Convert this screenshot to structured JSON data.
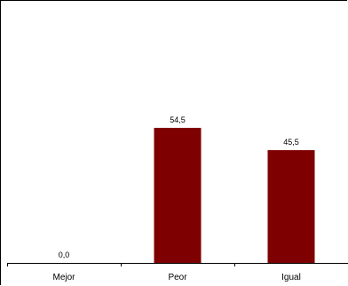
{
  "chart_data": {
    "type": "bar",
    "categories": [
      "Mejor",
      "Peor",
      "Igual"
    ],
    "values": [
      0.0,
      54.5,
      45.5
    ],
    "value_labels": [
      "0,0",
      "54,5",
      "45,5"
    ],
    "title": "",
    "xlabel": "",
    "ylabel": "",
    "ylim": [
      0,
      100
    ],
    "grid": false,
    "legend": "none",
    "colors": {
      "bar": "#7f0000",
      "axis": "#000000"
    }
  }
}
